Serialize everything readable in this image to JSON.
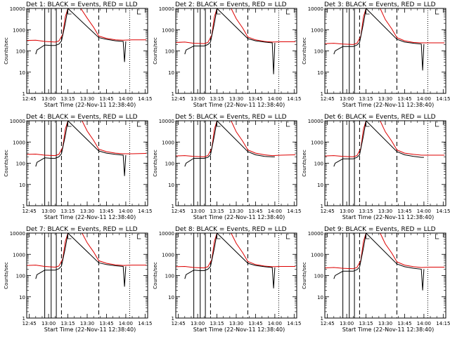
{
  "figure": {
    "xlabel": "Start Time (22-Nov-11 12:38:40)",
    "ylabel": "Counts/sec",
    "title_suffix": "BLACK = Events, RED = LLD"
  },
  "chart_data": {
    "type": "line",
    "layout": "3x3 grid of detector panels",
    "y_scale": "log",
    "ylim": [
      1,
      10000
    ],
    "y_ticks": [
      1,
      10,
      100,
      1000,
      10000
    ],
    "y_tick_labels": [
      "1",
      "10",
      "100",
      "1000",
      "10000"
    ],
    "xlim": [
      "12:43",
      "14:17"
    ],
    "x_ticks": [
      "12:45",
      "13:00",
      "13:15",
      "13:30",
      "13:45",
      "14:00",
      "14:15"
    ],
    "grid": false,
    "series_colors": {
      "events": "#000000",
      "lld": "#dd0000"
    },
    "markers": {
      "solid_vertical_times": [
        "12:57",
        "13:02",
        "13:06"
      ],
      "dashed_vertical_times": [
        "13:10",
        "13:39"
      ],
      "dotted_vertical_times": [
        "14:03",
        "14:17"
      ],
      "bracket_times": [
        "13:15",
        "14:09"
      ]
    },
    "panels": [
      {
        "title": "Det 1:",
        "events": [
          [
            "12:50",
            70
          ],
          [
            "12:51",
            110
          ],
          [
            "12:57",
            190
          ],
          [
            "13:02",
            180
          ],
          [
            "13:05",
            180
          ],
          [
            "13:08",
            210
          ],
          [
            "13:10",
            290
          ],
          [
            "13:13",
            2000
          ],
          [
            "13:15",
            10000
          ],
          [
            "13:39",
            420
          ],
          [
            "13:45",
            350
          ],
          [
            "13:52",
            300
          ],
          [
            "13:58",
            280
          ],
          [
            "13:59",
            30
          ],
          [
            "14:00",
            280
          ]
        ],
        "lld": [
          [
            "12:43",
            310
          ],
          [
            "12:50",
            320
          ],
          [
            "12:57",
            280
          ],
          [
            "13:05",
            260
          ],
          [
            "13:08",
            290
          ],
          [
            "13:11",
            600
          ],
          [
            "13:13",
            4000
          ],
          [
            "13:15",
            10000
          ],
          [
            "13:25",
            10000
          ],
          [
            "13:30",
            3500
          ],
          [
            "13:35",
            1300
          ],
          [
            "13:39",
            500
          ],
          [
            "13:45",
            390
          ],
          [
            "13:52",
            330
          ],
          [
            "13:58",
            320
          ],
          [
            "14:05",
            330
          ],
          [
            "14:16",
            330
          ]
        ]
      },
      {
        "title": "Det 2:",
        "events": [
          [
            "12:50",
            70
          ],
          [
            "12:51",
            110
          ],
          [
            "12:57",
            170
          ],
          [
            "13:02",
            170
          ],
          [
            "13:05",
            170
          ],
          [
            "13:08",
            200
          ],
          [
            "13:10",
            260
          ],
          [
            "13:13",
            2000
          ],
          [
            "13:15",
            10000
          ],
          [
            "13:39",
            380
          ],
          [
            "13:45",
            300
          ],
          [
            "13:52",
            260
          ],
          [
            "13:58",
            240
          ],
          [
            "13:59",
            8
          ],
          [
            "14:00",
            240
          ]
        ],
        "lld": [
          [
            "12:43",
            250
          ],
          [
            "12:50",
            260
          ],
          [
            "12:57",
            230
          ],
          [
            "13:05",
            220
          ],
          [
            "13:08",
            250
          ],
          [
            "13:11",
            550
          ],
          [
            "13:13",
            4000
          ],
          [
            "13:15",
            10000
          ],
          [
            "13:26",
            10000
          ],
          [
            "13:30",
            3300
          ],
          [
            "13:35",
            1200
          ],
          [
            "13:39",
            450
          ],
          [
            "13:45",
            330
          ],
          [
            "13:52",
            280
          ],
          [
            "13:58",
            260
          ],
          [
            "14:05",
            270
          ],
          [
            "14:16",
            270
          ]
        ]
      },
      {
        "title": "Det 3:",
        "events": [
          [
            "12:50",
            70
          ],
          [
            "12:51",
            100
          ],
          [
            "12:57",
            160
          ],
          [
            "13:02",
            160
          ],
          [
            "13:05",
            160
          ],
          [
            "13:08",
            190
          ],
          [
            "13:10",
            250
          ],
          [
            "13:13",
            2000
          ],
          [
            "13:15",
            10000
          ],
          [
            "13:39",
            350
          ],
          [
            "13:45",
            260
          ],
          [
            "13:52",
            230
          ],
          [
            "13:58",
            210
          ],
          [
            "13:59",
            12
          ],
          [
            "14:00",
            210
          ]
        ],
        "lld": [
          [
            "12:43",
            220
          ],
          [
            "12:50",
            230
          ],
          [
            "12:57",
            210
          ],
          [
            "13:05",
            200
          ],
          [
            "13:08",
            230
          ],
          [
            "13:11",
            500
          ],
          [
            "13:13",
            4000
          ],
          [
            "13:15",
            10000
          ],
          [
            "13:26",
            10000
          ],
          [
            "13:30",
            3000
          ],
          [
            "13:35",
            1100
          ],
          [
            "13:39",
            420
          ],
          [
            "13:45",
            300
          ],
          [
            "13:52",
            250
          ],
          [
            "13:58",
            240
          ],
          [
            "14:05",
            240
          ],
          [
            "14:16",
            240
          ]
        ]
      },
      {
        "title": "Det 4:",
        "events": [
          [
            "12:50",
            70
          ],
          [
            "12:51",
            110
          ],
          [
            "12:57",
            180
          ],
          [
            "13:02",
            170
          ],
          [
            "13:05",
            170
          ],
          [
            "13:08",
            200
          ],
          [
            "13:10",
            280
          ],
          [
            "13:13",
            2000
          ],
          [
            "13:15",
            10000
          ],
          [
            "13:39",
            380
          ],
          [
            "13:45",
            300
          ],
          [
            "13:52",
            260
          ],
          [
            "13:58",
            240
          ],
          [
            "13:59",
            25
          ],
          [
            "14:00",
            240
          ]
        ],
        "lld": [
          [
            "12:43",
            260
          ],
          [
            "12:50",
            270
          ],
          [
            "12:57",
            240
          ],
          [
            "13:05",
            230
          ],
          [
            "13:08",
            260
          ],
          [
            "13:11",
            560
          ],
          [
            "13:13",
            4000
          ],
          [
            "13:15",
            10000
          ],
          [
            "13:26",
            10000
          ],
          [
            "13:30",
            3300
          ],
          [
            "13:35",
            1200
          ],
          [
            "13:39",
            460
          ],
          [
            "13:45",
            350
          ],
          [
            "13:52",
            300
          ],
          [
            "13:58",
            280
          ],
          [
            "14:05",
            280
          ],
          [
            "14:16",
            290
          ]
        ]
      },
      {
        "title": "Det 5:",
        "events": [
          [
            "12:50",
            70
          ],
          [
            "12:51",
            100
          ],
          [
            "12:57",
            170
          ],
          [
            "13:02",
            170
          ],
          [
            "13:05",
            170
          ],
          [
            "13:08",
            190
          ],
          [
            "13:10",
            250
          ],
          [
            "13:13",
            2000
          ],
          [
            "13:15",
            10000
          ],
          [
            "13:39",
            350
          ],
          [
            "13:45",
            250
          ],
          [
            "13:52",
            210
          ],
          [
            "13:58",
            200
          ],
          [
            "14:00",
            200
          ]
        ],
        "lld": [
          [
            "12:43",
            220
          ],
          [
            "12:50",
            230
          ],
          [
            "12:57",
            210
          ],
          [
            "13:05",
            200
          ],
          [
            "13:08",
            230
          ],
          [
            "13:11",
            500
          ],
          [
            "13:13",
            4000
          ],
          [
            "13:15",
            10000
          ],
          [
            "13:26",
            10000
          ],
          [
            "13:30",
            3000
          ],
          [
            "13:35",
            1100
          ],
          [
            "13:39",
            420
          ],
          [
            "13:45",
            300
          ],
          [
            "13:52",
            250
          ],
          [
            "13:58",
            230
          ],
          [
            "14:05",
            240
          ],
          [
            "14:16",
            250
          ]
        ]
      },
      {
        "title": "Det 6:",
        "events": [
          [
            "12:50",
            70
          ],
          [
            "12:51",
            100
          ],
          [
            "12:57",
            160
          ],
          [
            "13:02",
            160
          ],
          [
            "13:05",
            160
          ],
          [
            "13:08",
            190
          ],
          [
            "13:10",
            250
          ],
          [
            "13:13",
            2000
          ],
          [
            "13:15",
            10000
          ],
          [
            "13:39",
            350
          ],
          [
            "13:45",
            250
          ],
          [
            "13:52",
            210
          ],
          [
            "13:58",
            190
          ],
          [
            "14:00",
            190
          ]
        ],
        "lld": [
          [
            "12:43",
            220
          ],
          [
            "12:50",
            230
          ],
          [
            "12:57",
            210
          ],
          [
            "13:05",
            200
          ],
          [
            "13:08",
            230
          ],
          [
            "13:11",
            500
          ],
          [
            "13:13",
            4000
          ],
          [
            "13:15",
            10000
          ],
          [
            "13:26",
            10000
          ],
          [
            "13:30",
            3000
          ],
          [
            "13:35",
            1100
          ],
          [
            "13:39",
            420
          ],
          [
            "13:45",
            300
          ],
          [
            "13:52",
            260
          ],
          [
            "13:58",
            240
          ],
          [
            "14:05",
            240
          ],
          [
            "14:16",
            240
          ]
        ]
      },
      {
        "title": "Det 7:",
        "events": [
          [
            "12:50",
            70
          ],
          [
            "12:51",
            110
          ],
          [
            "12:57",
            180
          ],
          [
            "13:02",
            180
          ],
          [
            "13:05",
            180
          ],
          [
            "13:08",
            210
          ],
          [
            "13:10",
            280
          ],
          [
            "13:13",
            2000
          ],
          [
            "13:15",
            10000
          ],
          [
            "13:39",
            400
          ],
          [
            "13:45",
            330
          ],
          [
            "13:52",
            290
          ],
          [
            "13:58",
            270
          ],
          [
            "13:59",
            30
          ],
          [
            "14:00",
            270
          ]
        ],
        "lld": [
          [
            "12:43",
            300
          ],
          [
            "12:50",
            310
          ],
          [
            "12:57",
            270
          ],
          [
            "13:05",
            250
          ],
          [
            "13:08",
            280
          ],
          [
            "13:11",
            600
          ],
          [
            "13:13",
            4000
          ],
          [
            "13:15",
            10000
          ],
          [
            "13:26",
            10000
          ],
          [
            "13:30",
            3500
          ],
          [
            "13:35",
            1300
          ],
          [
            "13:39",
            500
          ],
          [
            "13:45",
            380
          ],
          [
            "13:52",
            320
          ],
          [
            "13:58",
            300
          ],
          [
            "14:05",
            310
          ],
          [
            "14:16",
            310
          ]
        ]
      },
      {
        "title": "Det 8:",
        "events": [
          [
            "12:50",
            70
          ],
          [
            "12:51",
            110
          ],
          [
            "12:57",
            180
          ],
          [
            "13:02",
            170
          ],
          [
            "13:05",
            170
          ],
          [
            "13:08",
            200
          ],
          [
            "13:10",
            270
          ],
          [
            "13:13",
            2000
          ],
          [
            "13:15",
            10000
          ],
          [
            "13:39",
            380
          ],
          [
            "13:45",
            300
          ],
          [
            "13:52",
            260
          ],
          [
            "13:58",
            240
          ],
          [
            "13:59",
            25
          ],
          [
            "14:00",
            240
          ]
        ],
        "lld": [
          [
            "12:43",
            260
          ],
          [
            "12:50",
            270
          ],
          [
            "12:57",
            240
          ],
          [
            "13:05",
            230
          ],
          [
            "13:08",
            260
          ],
          [
            "13:11",
            560
          ],
          [
            "13:13",
            4000
          ],
          [
            "13:15",
            10000
          ],
          [
            "13:26",
            10000
          ],
          [
            "13:30",
            3300
          ],
          [
            "13:35",
            1200
          ],
          [
            "13:39",
            460
          ],
          [
            "13:45",
            330
          ],
          [
            "13:52",
            280
          ],
          [
            "13:58",
            260
          ],
          [
            "14:05",
            270
          ],
          [
            "14:16",
            270
          ]
        ]
      },
      {
        "title": "Det 9:",
        "events": [
          [
            "12:50",
            70
          ],
          [
            "12:51",
            100
          ],
          [
            "12:57",
            160
          ],
          [
            "13:02",
            160
          ],
          [
            "13:05",
            160
          ],
          [
            "13:08",
            190
          ],
          [
            "13:10",
            250
          ],
          [
            "13:13",
            2000
          ],
          [
            "13:15",
            10000
          ],
          [
            "13:39",
            350
          ],
          [
            "13:45",
            260
          ],
          [
            "13:52",
            220
          ],
          [
            "13:58",
            200
          ],
          [
            "13:59",
            20
          ],
          [
            "14:00",
            200
          ]
        ],
        "lld": [
          [
            "12:43",
            230
          ],
          [
            "12:50",
            240
          ],
          [
            "12:57",
            220
          ],
          [
            "13:05",
            210
          ],
          [
            "13:08",
            240
          ],
          [
            "13:11",
            520
          ],
          [
            "13:13",
            4000
          ],
          [
            "13:15",
            10000
          ],
          [
            "13:26",
            10000
          ],
          [
            "13:30",
            3100
          ],
          [
            "13:35",
            1150
          ],
          [
            "13:39",
            440
          ],
          [
            "13:45",
            310
          ],
          [
            "13:52",
            260
          ],
          [
            "13:58",
            240
          ],
          [
            "14:05",
            250
          ],
          [
            "14:16",
            250
          ]
        ]
      }
    ]
  }
}
